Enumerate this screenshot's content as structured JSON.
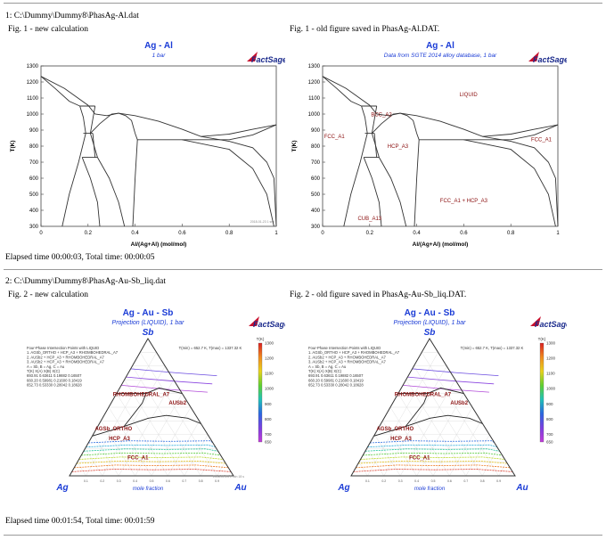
{
  "report": {
    "sections": [
      {
        "header": "1: C:\\Dummy\\Dummy8\\PhasAg-Al.dat",
        "left_caption": "Fig. 1 - new calculation",
        "right_caption": "Fig. 1 - old figure saved in PhasAg-Al.DAT.",
        "elapsed": "Elapsed time 00:00:03, Total time: 00:00:05"
      },
      {
        "header": "2: C:\\Dummy\\Dummy8\\PhasAg-Au-Sb_liq.dat",
        "left_caption": "Fig. 2 - new calculation",
        "right_caption": "Fig. 2 - old figure saved in PhasAg-Au-Sb_liq.DAT.",
        "elapsed": "Elapsed time 00:01:54, Total time: 00:01:59"
      }
    ]
  },
  "brand": {
    "logo_text": "FactSage",
    "color": "#1a2a8c"
  },
  "chart_data": [
    {
      "type": "line",
      "title": "Ag - Al",
      "subtitle": "1 bar",
      "xlabel": "Al/(Ag+Al) (mol/mol)",
      "ylabel": "T(K)",
      "xlim": [
        0,
        1
      ],
      "ylim": [
        300,
        1300
      ],
      "xticks": [
        0,
        0.2,
        0.4,
        0.6,
        0.8,
        1
      ],
      "yticks": [
        300,
        400,
        500,
        600,
        700,
        800,
        900,
        1000,
        1100,
        1200,
        1300
      ],
      "timestamp": "2018-01-23  1 sec",
      "grid": false,
      "phase_labels": [],
      "series": [
        {
          "values": [
            [
              0,
              1235
            ],
            [
              0.1,
              1160
            ],
            [
              0.2,
              1055
            ],
            [
              0.23,
              1000
            ],
            [
              0.28,
              990
            ],
            [
              0.33,
              1005
            ]
          ]
        },
        {
          "values": [
            [
              0.33,
              1005
            ],
            [
              0.4,
              990
            ],
            [
              0.5,
              955
            ],
            [
              0.6,
              905
            ],
            [
              0.68,
              860
            ],
            [
              0.8,
              875
            ],
            [
              0.9,
              905
            ],
            [
              1,
              933
            ]
          ]
        },
        {
          "values": [
            [
              0,
              1235
            ],
            [
              0.06,
              1160
            ],
            [
              0.12,
              1080
            ],
            [
              0.165,
              1050
            ]
          ]
        },
        {
          "values": [
            [
              0.165,
              1050
            ],
            [
              0.23,
              1050
            ]
          ]
        },
        {
          "values": [
            [
              0.165,
              1050
            ],
            [
              0.18,
              980
            ],
            [
              0.19,
              880
            ]
          ]
        },
        {
          "values": [
            [
              0.23,
              1050
            ],
            [
              0.21,
              880
            ]
          ]
        },
        {
          "values": [
            [
              0.21,
              880
            ],
            [
              0.25,
              940
            ],
            [
              0.3,
              1000
            ],
            [
              0.33,
              1005
            ],
            [
              0.36,
              990
            ],
            [
              0.385,
              960
            ],
            [
              0.4,
              880
            ]
          ]
        },
        {
          "values": [
            [
              0.19,
              880
            ],
            [
              0.16,
              700
            ],
            [
              0.12,
              500
            ],
            [
              0.09,
              300
            ]
          ]
        },
        {
          "values": [
            [
              0.18,
              880
            ],
            [
              0.22,
              880
            ]
          ]
        },
        {
          "values": [
            [
              0.21,
              880
            ],
            [
              0.24,
              730
            ]
          ]
        },
        {
          "values": [
            [
              0.175,
              730
            ],
            [
              0.24,
              730
            ]
          ]
        },
        {
          "values": [
            [
              0.22,
              880
            ],
            [
              0.23,
              730
            ]
          ]
        },
        {
          "values": [
            [
              0.175,
              730
            ],
            [
              0.21,
              600
            ],
            [
              0.24,
              450
            ],
            [
              0.25,
              300
            ]
          ]
        },
        {
          "values": [
            [
              0.24,
              730
            ],
            [
              0.29,
              600
            ],
            [
              0.33,
              450
            ],
            [
              0.355,
              300
            ]
          ]
        },
        {
          "values": [
            [
              0.4,
              880
            ],
            [
              0.41,
              840
            ],
            [
              0.4,
              600
            ],
            [
              0.39,
              300
            ]
          ]
        },
        {
          "values": [
            [
              0.41,
              840
            ],
            [
              0.68,
              840
            ]
          ]
        },
        {
          "values": [
            [
              0.68,
              840
            ],
            [
              0.8,
              840
            ],
            [
              0.9,
              870
            ],
            [
              1,
              933
            ]
          ]
        },
        {
          "values": [
            [
              0.6,
              840
            ],
            [
              0.8,
              780
            ],
            [
              0.9,
              660
            ],
            [
              0.96,
              500
            ],
            [
              0.99,
              300
            ]
          ]
        },
        {
          "values": [
            [
              0.68,
              860
            ],
            [
              0.8,
              830
            ],
            [
              0.9,
              790
            ],
            [
              0.96,
              700
            ],
            [
              0.99,
              600
            ],
            [
              1,
              300
            ]
          ]
        }
      ]
    },
    {
      "type": "line",
      "title": "Ag - Al",
      "subtitle": "Data from SGTE 2014 alloy database, 1 bar",
      "xlabel": "Al/(Ag+Al) (mol/mol)",
      "ylabel": "T(K)",
      "xlim": [
        0,
        1
      ],
      "ylim": [
        300,
        1300
      ],
      "xticks": [
        0,
        0.2,
        0.4,
        0.6,
        0.8,
        1
      ],
      "yticks": [
        300,
        400,
        500,
        600,
        700,
        800,
        900,
        1000,
        1100,
        1200,
        1300
      ],
      "timestamp": "",
      "grid": false,
      "phase_labels": [
        {
          "text": "LIQUID",
          "x": 0.62,
          "y": 1110
        },
        {
          "text": "BCC_A2",
          "x": 0.25,
          "y": 985
        },
        {
          "text": "FCC_A1",
          "x": 0.05,
          "y": 850
        },
        {
          "text": "HCP_A3",
          "x": 0.32,
          "y": 790
        },
        {
          "text": "FCC_A1",
          "x": 0.93,
          "y": 830
        },
        {
          "text": "FCC_A1 + HCP_A3",
          "x": 0.6,
          "y": 450
        },
        {
          "text": "CUB_A13",
          "x": 0.2,
          "y": 340
        }
      ],
      "series": [
        {
          "values": [
            [
              0,
              1235
            ],
            [
              0.1,
              1160
            ],
            [
              0.2,
              1055
            ],
            [
              0.23,
              1000
            ],
            [
              0.28,
              990
            ],
            [
              0.33,
              1005
            ]
          ]
        },
        {
          "values": [
            [
              0.33,
              1005
            ],
            [
              0.4,
              990
            ],
            [
              0.5,
              955
            ],
            [
              0.6,
              905
            ],
            [
              0.68,
              860
            ],
            [
              0.8,
              875
            ],
            [
              0.9,
              905
            ],
            [
              1,
              933
            ]
          ]
        },
        {
          "values": [
            [
              0,
              1235
            ],
            [
              0.06,
              1160
            ],
            [
              0.12,
              1080
            ],
            [
              0.165,
              1050
            ]
          ]
        },
        {
          "values": [
            [
              0.165,
              1050
            ],
            [
              0.23,
              1050
            ]
          ]
        },
        {
          "values": [
            [
              0.165,
              1050
            ],
            [
              0.18,
              980
            ],
            [
              0.19,
              880
            ]
          ]
        },
        {
          "values": [
            [
              0.23,
              1050
            ],
            [
              0.21,
              880
            ]
          ]
        },
        {
          "values": [
            [
              0.21,
              880
            ],
            [
              0.25,
              940
            ],
            [
              0.3,
              1000
            ],
            [
              0.33,
              1005
            ],
            [
              0.36,
              990
            ],
            [
              0.385,
              960
            ],
            [
              0.4,
              880
            ]
          ]
        },
        {
          "values": [
            [
              0.19,
              880
            ],
            [
              0.16,
              700
            ],
            [
              0.12,
              500
            ],
            [
              0.09,
              300
            ]
          ]
        },
        {
          "values": [
            [
              0.18,
              880
            ],
            [
              0.22,
              880
            ]
          ]
        },
        {
          "values": [
            [
              0.21,
              880
            ],
            [
              0.24,
              730
            ]
          ]
        },
        {
          "values": [
            [
              0.175,
              730
            ],
            [
              0.24,
              730
            ]
          ]
        },
        {
          "values": [
            [
              0.22,
              880
            ],
            [
              0.23,
              730
            ]
          ]
        },
        {
          "values": [
            [
              0.175,
              730
            ],
            [
              0.21,
              600
            ],
            [
              0.24,
              450
            ],
            [
              0.25,
              300
            ]
          ]
        },
        {
          "values": [
            [
              0.24,
              730
            ],
            [
              0.29,
              600
            ],
            [
              0.33,
              450
            ],
            [
              0.355,
              300
            ]
          ]
        },
        {
          "values": [
            [
              0.4,
              880
            ],
            [
              0.41,
              840
            ],
            [
              0.4,
              600
            ],
            [
              0.39,
              300
            ]
          ]
        },
        {
          "values": [
            [
              0.41,
              840
            ],
            [
              0.68,
              840
            ]
          ]
        },
        {
          "values": [
            [
              0.68,
              840
            ],
            [
              0.8,
              840
            ],
            [
              0.9,
              870
            ],
            [
              1,
              933
            ]
          ]
        },
        {
          "values": [
            [
              0.6,
              840
            ],
            [
              0.8,
              780
            ],
            [
              0.9,
              660
            ],
            [
              0.96,
              500
            ],
            [
              0.99,
              300
            ]
          ]
        },
        {
          "values": [
            [
              0.68,
              860
            ],
            [
              0.8,
              830
            ],
            [
              0.9,
              790
            ],
            [
              0.96,
              700
            ],
            [
              0.99,
              600
            ],
            [
              1,
              300
            ]
          ]
        }
      ]
    },
    {
      "type": "ternary",
      "title": "Ag - Au - Sb",
      "subtitle": "Projection (LIQUID), 1 bar",
      "corners": {
        "top": "Sb",
        "left": "Ag",
        "right": "Au"
      },
      "axis_label": "mole fraction",
      "tmin_tmax": "T(min) = 652.7 K, T(max) = 1337.32 K",
      "timestamp": "2018-01-23  1 min 18 s",
      "info_lines": [
        "Four-Phase Intersection Points with LIQUID",
        "1. AGSb_ORTHO + HCP_A3 + RHOMBOHEDRAL_A7",
        "2. AUSb2 + HCP_A3 + RHOMBOHEDRAL_A7",
        "3. AUSb2 + HCP_A3 + RHOMBOHEDRAL_A7",
        "A = Sb,  B = Ag,  C = Au",
        "T(K)    X(A)    X(B)    X(C)",
        "693.91  0.63611  0.19882  0.16507",
        "660.20  0.59981  0.21600  0.18419",
        "652.73  0.53330  0.28042  0.18628"
      ],
      "phase_labels": [
        {
          "text": "RHOMBOHEDRAL_A7",
          "a": 0.58,
          "b": 0.26,
          "c": 0.16
        },
        {
          "text": "AUSb2",
          "a": 0.52,
          "b": 0.07,
          "c": 0.41
        },
        {
          "text": "AGSb_ORTHO",
          "a": 0.33,
          "b": 0.56,
          "c": 0.11
        },
        {
          "text": "HCP_A3",
          "a": 0.26,
          "b": 0.56,
          "c": 0.18
        },
        {
          "text": "FCC_A1",
          "a": 0.12,
          "b": 0.52,
          "c": 0.36
        }
      ],
      "legend": {
        "title": "T(K)",
        "ticks": [
          1300,
          1200,
          1100,
          1000,
          900,
          800,
          700,
          650
        ]
      },
      "isotherms": [
        {
          "t": 1250,
          "color": "#d93a2a",
          "a": 0.03
        },
        {
          "t": 1200,
          "color": "#ee7a22",
          "a": 0.06
        },
        {
          "t": 1150,
          "color": "#e6c21c",
          "a": 0.09
        },
        {
          "t": 1100,
          "color": "#b7d520",
          "a": 0.12
        },
        {
          "t": 1050,
          "color": "#56cc3a",
          "a": 0.15
        },
        {
          "t": 1000,
          "color": "#22c49a",
          "a": 0.18
        },
        {
          "t": 950,
          "color": "#22a7d8",
          "a": 0.21
        },
        {
          "t": 900,
          "color": "#2f6fe0",
          "a": 0.24
        }
      ],
      "upper_isotherms": [
        {
          "t": 850,
          "color": "#6b4ce0",
          "a": 0.78
        },
        {
          "t": 800,
          "color": "#8a45e0",
          "a": 0.72
        },
        {
          "t": 750,
          "color": "#b24ad8",
          "a": 0.66
        }
      ]
    },
    {
      "type": "ternary",
      "title": "Ag - Au - Sb",
      "subtitle": "Projection (LIQUID), 1 bar",
      "corners": {
        "top": "Sb",
        "left": "Ag",
        "right": "Au"
      },
      "axis_label": "mole fraction",
      "tmin_tmax": "T(min) = 652.7 K, T(max) = 1337.32 K",
      "timestamp": "",
      "info_lines": [
        "Four-Phase Intersection Points with LIQUID",
        "1. AGSb_ORTHO + HCP_A3 + RHOMBOHEDRAL_A7",
        "2. AUSb2 + HCP_A3 + RHOMBOHEDRAL_A7",
        "3. AUSb2 + HCP_A3 + RHOMBOHEDRAL_A7",
        "A = Sb,  B = Ag,  C = Au",
        "T(K)    X(A)    X(B)    X(C)",
        "693.91  0.63611  0.19882  0.16507",
        "660.20  0.59981  0.21600  0.18419",
        "652.73  0.53330  0.28042  0.18628"
      ],
      "phase_labels": [
        {
          "text": "RHOMBOHEDRAL_A7",
          "a": 0.58,
          "b": 0.26,
          "c": 0.16
        },
        {
          "text": "AUSb2",
          "a": 0.52,
          "b": 0.07,
          "c": 0.41
        },
        {
          "text": "AGSb_ORTHO",
          "a": 0.33,
          "b": 0.56,
          "c": 0.11
        },
        {
          "text": "HCP_A3",
          "a": 0.26,
          "b": 0.56,
          "c": 0.18
        },
        {
          "text": "FCC_A1",
          "a": 0.12,
          "b": 0.52,
          "c": 0.36
        }
      ],
      "legend": {
        "title": "T(K)",
        "ticks": [
          1300,
          1200,
          1100,
          1000,
          900,
          800,
          700,
          650
        ]
      },
      "isotherms": [
        {
          "t": 1250,
          "color": "#d93a2a",
          "a": 0.03
        },
        {
          "t": 1200,
          "color": "#ee7a22",
          "a": 0.06
        },
        {
          "t": 1150,
          "color": "#e6c21c",
          "a": 0.09
        },
        {
          "t": 1100,
          "color": "#b7d520",
          "a": 0.12
        },
        {
          "t": 1050,
          "color": "#56cc3a",
          "a": 0.15
        },
        {
          "t": 1000,
          "color": "#22c49a",
          "a": 0.18
        },
        {
          "t": 950,
          "color": "#22a7d8",
          "a": 0.21
        },
        {
          "t": 900,
          "color": "#2f6fe0",
          "a": 0.24
        }
      ],
      "upper_isotherms": [
        {
          "t": 850,
          "color": "#6b4ce0",
          "a": 0.78
        },
        {
          "t": 800,
          "color": "#8a45e0",
          "a": 0.72
        },
        {
          "t": 750,
          "color": "#b24ad8",
          "a": 0.66
        }
      ]
    }
  ]
}
